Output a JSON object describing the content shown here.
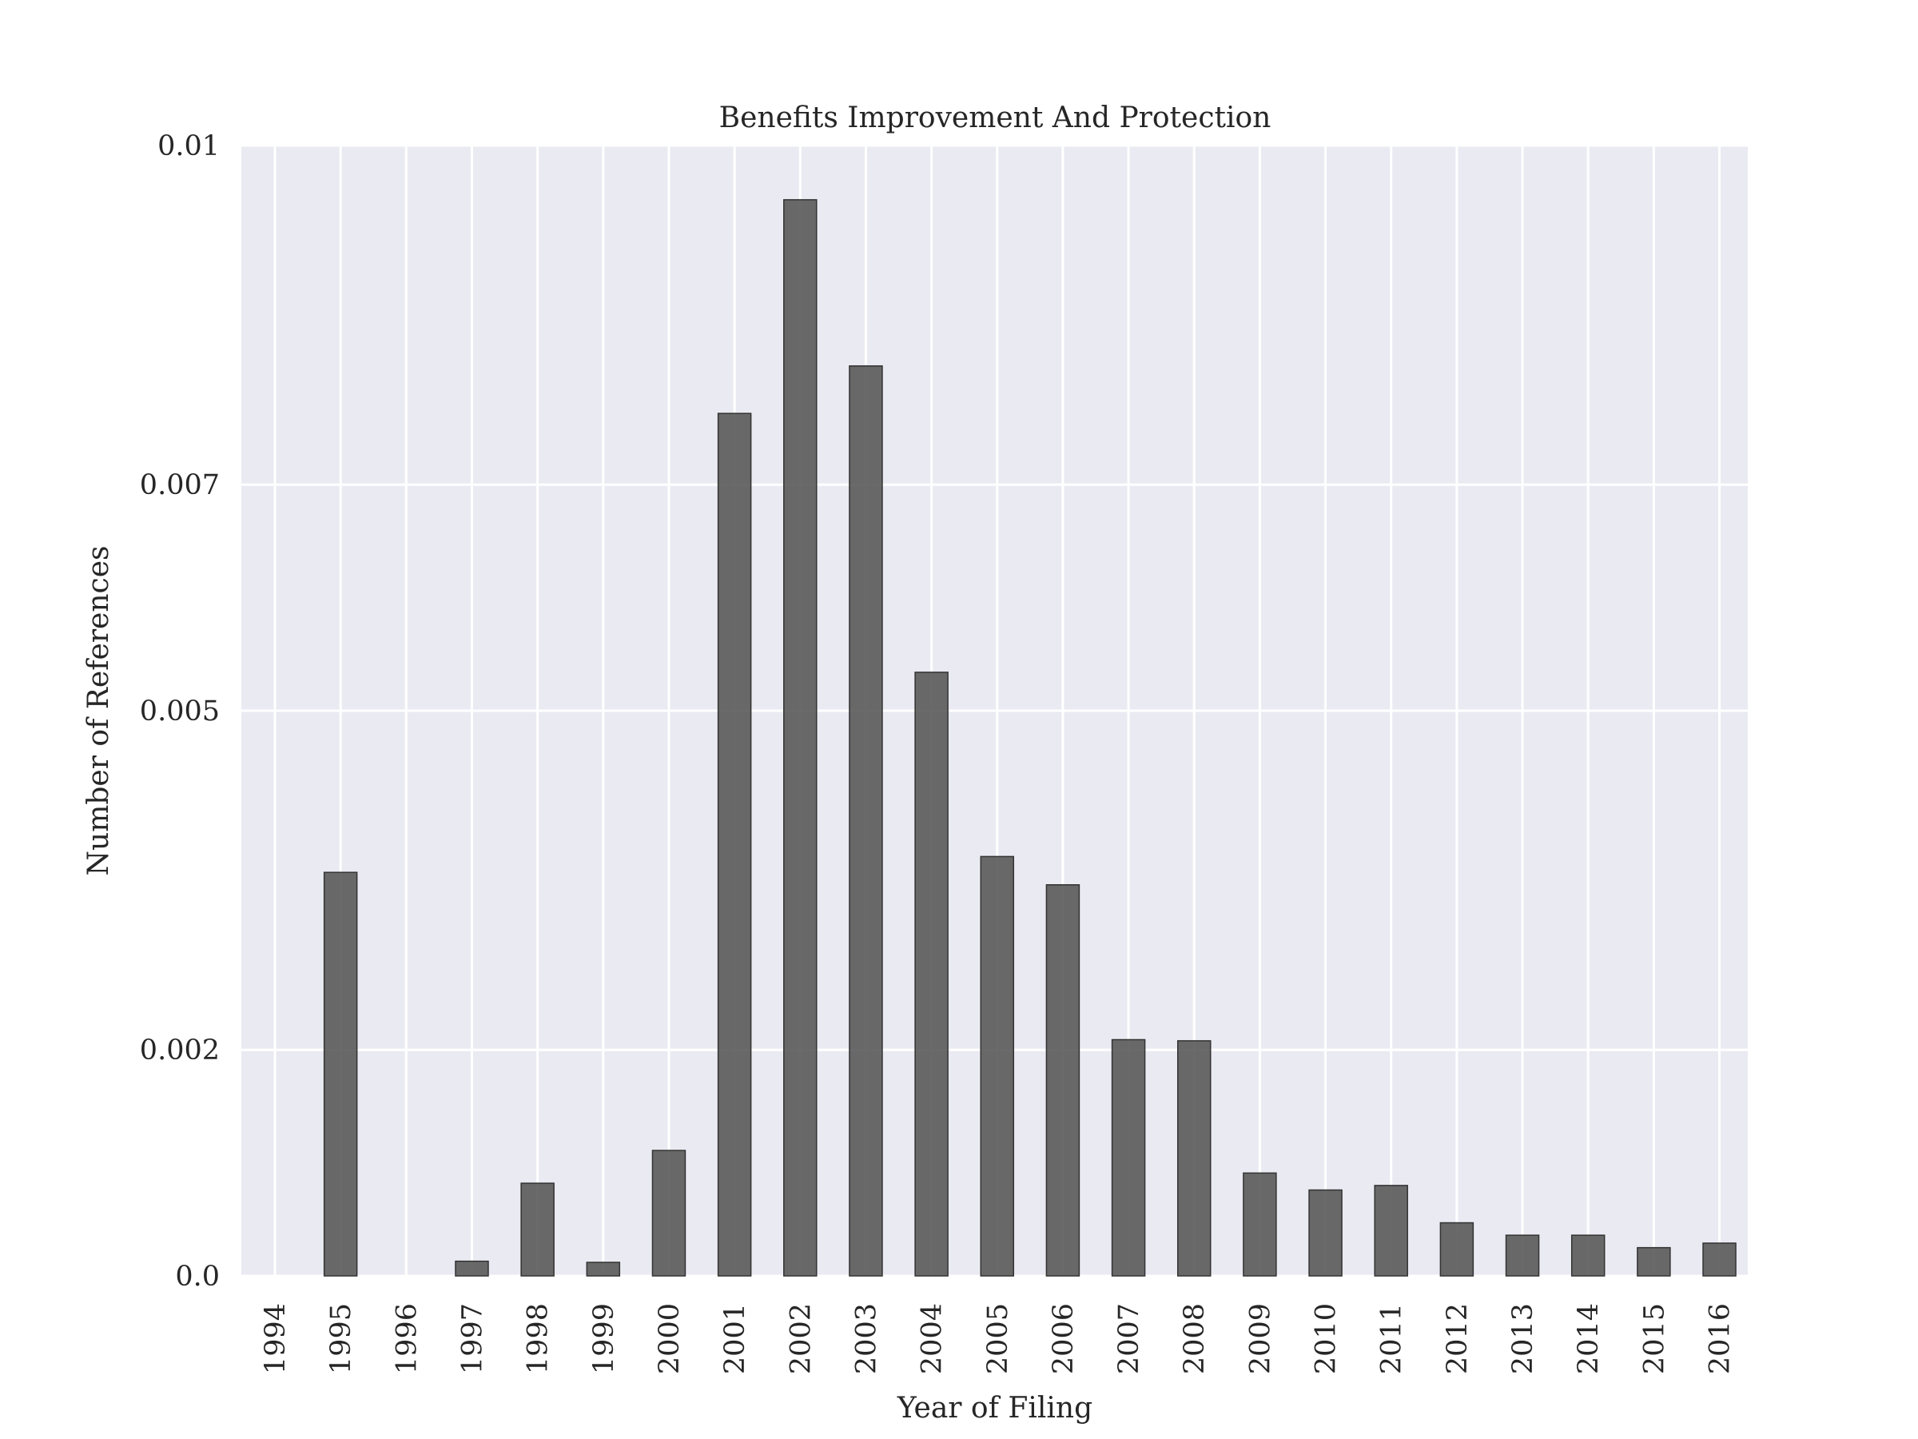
{
  "chart_data": {
    "type": "bar",
    "title": "Benefits Improvement And Protection",
    "xlabel": "Year of Filing",
    "ylabel": "Number of References",
    "categories": [
      "1994",
      "1995",
      "1996",
      "1997",
      "1998",
      "1999",
      "2000",
      "2001",
      "2002",
      "2003",
      "2004",
      "2005",
      "2006",
      "2007",
      "2008",
      "2009",
      "2010",
      "2011",
      "2012",
      "2013",
      "2014",
      "2015",
      "2016"
    ],
    "values": [
      0.0,
      0.00357,
      0.0,
      0.00013,
      0.00082,
      0.00012,
      0.00111,
      0.00763,
      0.00952,
      0.00805,
      0.00534,
      0.00371,
      0.00346,
      0.00209,
      0.00208,
      0.00091,
      0.00076,
      0.0008,
      0.00047,
      0.00036,
      0.00036,
      0.00025,
      0.00029
    ],
    "yticks": [
      0.0,
      0.002,
      0.005,
      0.007,
      0.01
    ],
    "ytick_labels": [
      "0.0",
      "0.002",
      "0.005",
      "0.007",
      "0.01"
    ],
    "ylim": [
      0,
      0.01
    ],
    "grid": true,
    "bar_color": "#555555",
    "plot_background": "#eaeaf2",
    "grid_color": "#ffffff"
  }
}
